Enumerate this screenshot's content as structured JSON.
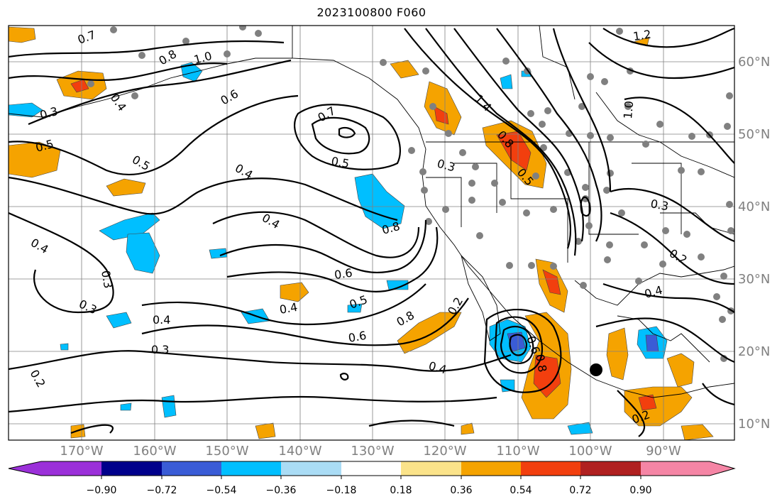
{
  "title": "2023100800 F060",
  "map": {
    "lon_labels": [
      "170°W",
      "160°W",
      "150°W",
      "140°W",
      "130°W",
      "120°W",
      "110°W",
      "100°W",
      "90°W"
    ],
    "lat_labels": [
      "60°N",
      "50°N",
      "40°N",
      "30°N",
      "20°N",
      "10°N"
    ],
    "contour_labels": [
      "0.7",
      "0.8",
      "1.0",
      "0.4",
      "0.3",
      "0.5",
      "0.6",
      "0.5",
      "0.4",
      "0.4",
      "0.3",
      "0.4",
      "0.3",
      "0.2",
      "0.7",
      "0.5",
      "0.4",
      "0.6",
      "0.5",
      "0.4",
      "0.6",
      "0.8",
      "0.3",
      "1.4",
      "0.8",
      "0.5",
      "0.3",
      "1.0",
      "0.8",
      "1.2",
      "0.3",
      "0.2",
      "0.4",
      "0.2",
      "0.4",
      "0.6",
      "0.8",
      "0.2"
    ],
    "colors": {
      "fill_pos_1": "#f5a300",
      "fill_pos_2": "#f23f0e",
      "fill_neg_1": "#00bfff",
      "fill_neg_2": "#3a5cd6",
      "coast": "#000000",
      "grid": "#808080",
      "dots": "#808080"
    }
  },
  "colorbar": {
    "ticks": [
      "−0.90",
      "−0.72",
      "−0.54",
      "−0.36",
      "−0.18",
      "0.18",
      "0.36",
      "0.54",
      "0.72",
      "0.90"
    ],
    "colors": [
      "#9b30d9",
      "#00008b",
      "#3a5cd6",
      "#00bfff",
      "#aadcf5",
      "#ffffff",
      "#fbe38a",
      "#f5a300",
      "#f23f0e",
      "#b02020",
      "#f585a5",
      "#f585a5"
    ]
  }
}
